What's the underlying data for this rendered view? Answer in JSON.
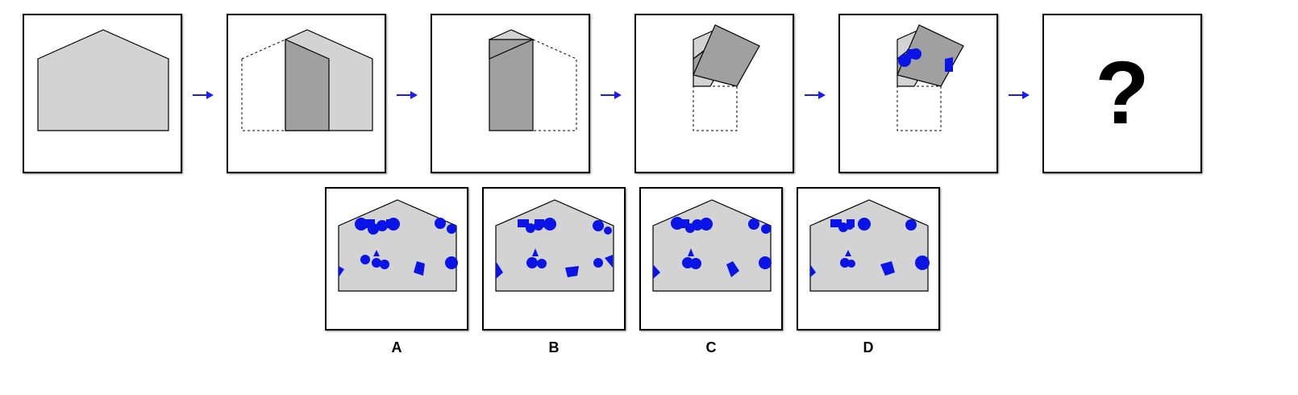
{
  "colors": {
    "paper": "#d3d3d3",
    "fold": "#a0a0a0",
    "hole": "#0a14e6",
    "arrow": "#1a1aff",
    "outline": "#000000"
  },
  "question_mark": "?",
  "options": [
    {
      "label": "A"
    },
    {
      "label": "B"
    },
    {
      "label": "C"
    },
    {
      "label": "D"
    }
  ]
}
